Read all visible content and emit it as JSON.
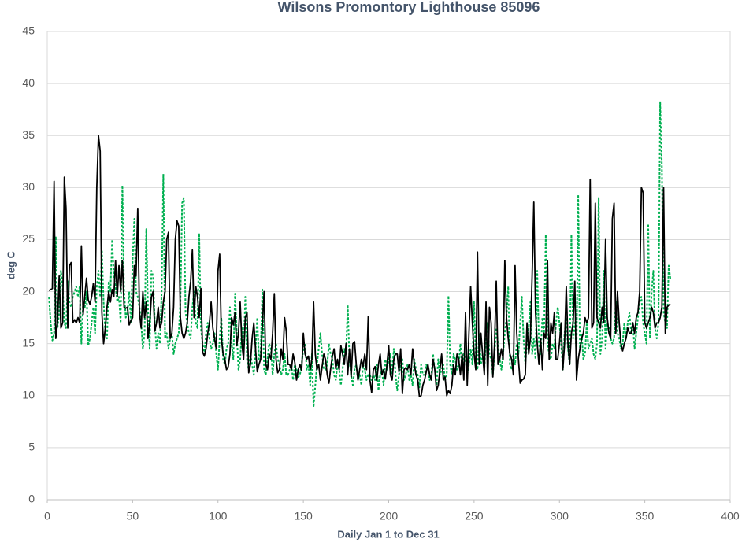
{
  "chart_data": {
    "type": "line",
    "title": "Wilsons Promontory Lighthouse 85096",
    "x_label": "Daily Jan 1 to Dec 31",
    "y_label": "deg C",
    "xlim": [
      0,
      400
    ],
    "xticks": [
      0,
      50,
      100,
      150,
      200,
      250,
      300,
      350,
      400
    ],
    "ylim": [
      0,
      45
    ],
    "yticks": [
      0,
      5,
      10,
      15,
      20,
      25,
      30,
      35,
      40,
      45
    ],
    "grid": true,
    "x": [
      1,
      2,
      3,
      4,
      5,
      6,
      7,
      8,
      9,
      10,
      11,
      12,
      13,
      14,
      15,
      16,
      17,
      18,
      19,
      20,
      21,
      22,
      23,
      24,
      25,
      26,
      27,
      28,
      29,
      30,
      31,
      32,
      33,
      34,
      35,
      36,
      37,
      38,
      39,
      40,
      41,
      42,
      43,
      44,
      45,
      46,
      47,
      48,
      49,
      50,
      51,
      52,
      53,
      54,
      55,
      56,
      57,
      58,
      59,
      60,
      61,
      62,
      63,
      64,
      65,
      66,
      67,
      68,
      69,
      70,
      71,
      72,
      73,
      74,
      75,
      76,
      77,
      78,
      79,
      80,
      81,
      82,
      83,
      84,
      85,
      86,
      87,
      88,
      89,
      90,
      91,
      92,
      93,
      94,
      95,
      96,
      97,
      98,
      99,
      100,
      101,
      102,
      103,
      104,
      105,
      106,
      107,
      108,
      109,
      110,
      111,
      112,
      113,
      114,
      115,
      116,
      117,
      118,
      119,
      120,
      121,
      122,
      123,
      124,
      125,
      126,
      127,
      128,
      129,
      130,
      131,
      132,
      133,
      134,
      135,
      136,
      137,
      138,
      139,
      140,
      141,
      142,
      143,
      144,
      145,
      146,
      147,
      148,
      149,
      150,
      151,
      152,
      153,
      154,
      155,
      156,
      157,
      158,
      159,
      160,
      161,
      162,
      163,
      164,
      165,
      166,
      167,
      168,
      169,
      170,
      171,
      172,
      173,
      174,
      175,
      176,
      177,
      178,
      179,
      180,
      181,
      182,
      183,
      184,
      185,
      186,
      187,
      188,
      189,
      190,
      191,
      192,
      193,
      194,
      195,
      196,
      197,
      198,
      199,
      200,
      201,
      202,
      203,
      204,
      205,
      206,
      207,
      208,
      209,
      210,
      211,
      212,
      213,
      214,
      215,
      216,
      217,
      218,
      219,
      220,
      221,
      222,
      223,
      224,
      225,
      226,
      227,
      228,
      229,
      230,
      231,
      232,
      233,
      234,
      235,
      236,
      237,
      238,
      239,
      240,
      241,
      242,
      243,
      244,
      245,
      246,
      247,
      248,
      249,
      250,
      251,
      252,
      253,
      254,
      255,
      256,
      257,
      258,
      259,
      260,
      261,
      262,
      263,
      264,
      265,
      266,
      267,
      268,
      269,
      270,
      271,
      272,
      273,
      274,
      275,
      276,
      277,
      278,
      279,
      280,
      281,
      282,
      283,
      284,
      285,
      286,
      287,
      288,
      289,
      290,
      291,
      292,
      293,
      294,
      295,
      296,
      297,
      298,
      299,
      300,
      301,
      302,
      303,
      304,
      305,
      306,
      307,
      308,
      309,
      310,
      311,
      312,
      313,
      314,
      315,
      316,
      317,
      318,
      319,
      320,
      321,
      322,
      323,
      324,
      325,
      326,
      327,
      328,
      329,
      330,
      331,
      332,
      333,
      334,
      335,
      336,
      337,
      338,
      339,
      340,
      341,
      342,
      343,
      344,
      345,
      346,
      347,
      348,
      349,
      350,
      351,
      352,
      353,
      354,
      355,
      356,
      357,
      358,
      359,
      360,
      361,
      362,
      363,
      364,
      365
    ],
    "series": [
      {
        "color": "#000000",
        "line_style": "solid",
        "values": [
          20.1,
          20.2,
          20.3,
          30.6,
          15.5,
          17,
          21.5,
          16.5,
          17,
          31,
          28,
          16.5,
          22.5,
          22.8,
          17,
          17.3,
          17,
          17.5,
          17,
          24.4,
          17.8,
          19.6,
          21.3,
          19.2,
          18.8,
          19.5,
          20.8,
          19,
          30,
          35,
          33.5,
          18,
          15,
          16.5,
          18.5,
          20,
          19,
          20.2,
          19.5,
          23,
          19.5,
          22.5,
          20,
          23,
          18.5,
          18.4,
          18.5,
          16.8,
          17.2,
          17.5,
          22.5,
          21.5,
          28,
          18,
          16.5,
          20,
          17.5,
          19,
          15.5,
          17,
          19.5,
          20,
          16.2,
          17,
          18.5,
          16.5,
          17,
          19,
          20,
          25,
          25.7,
          15.5,
          16,
          18.5,
          25,
          26.8,
          26.3,
          17.5,
          16,
          15.5,
          16,
          17,
          19.5,
          21,
          24,
          17.5,
          20.5,
          19.5,
          17.5,
          20.3,
          14.2,
          13.8,
          14.5,
          16,
          17,
          19,
          16.5,
          15.5,
          14.5,
          22,
          23.6,
          15.5,
          14,
          13.5,
          12.5,
          12.8,
          14,
          17.5,
          16.8,
          18,
          14.8,
          16,
          19,
          15,
          13.5,
          17.5,
          18,
          12.2,
          13,
          15.5,
          17,
          14.5,
          12.3,
          13,
          13.5,
          16.8,
          20,
          13,
          12.5,
          14,
          13.5,
          16,
          19.8,
          13.5,
          12.2,
          12.5,
          14.5,
          13.5,
          17.5,
          16.2,
          13,
          13,
          12.5,
          14,
          13.2,
          11.5,
          12.5,
          13,
          12.4,
          16,
          14,
          13.5,
          13.8,
          12.5,
          13.5,
          19,
          14,
          12.5,
          13,
          11.5,
          12.8,
          14,
          13.5,
          12,
          11.2,
          12.6,
          13.8,
          14.5,
          12.6,
          13.5,
          12.5,
          14.8,
          14,
          13,
          15,
          12,
          14.5,
          11.8,
          15,
          15.2,
          13,
          11.5,
          12.5,
          13.5,
          12.8,
          14,
          12.5,
          17.6,
          11.5,
          10.3,
          12.5,
          12.8,
          11.5,
          13,
          14,
          12,
          12.5,
          11.6,
          13,
          14.8,
          12,
          11.5,
          13.5,
          14,
          14,
          12.3,
          14.5,
          10.2,
          12.5,
          12.7,
          12.5,
          13,
          12,
          14.5,
          13,
          12,
          11.5,
          9.9,
          10,
          11,
          11.5,
          12.3,
          13,
          12,
          11.5,
          13.5,
          12.5,
          10.5,
          11,
          12.5,
          14,
          11.5,
          11.8,
          10,
          10.5,
          10.2,
          11,
          13,
          12,
          14,
          13.5,
          12,
          14,
          11.5,
          18,
          11,
          16,
          20.5,
          17,
          14,
          12.5,
          23.8,
          13,
          16,
          14,
          12,
          19,
          11,
          18.5,
          17,
          11.8,
          15,
          21,
          13,
          13.5,
          14.5,
          13.5,
          23,
          17.5,
          15.5,
          14,
          13.5,
          12,
          22.5,
          16,
          13.5,
          11.2,
          11.5,
          11.6,
          12,
          17,
          14,
          15.5,
          21.5,
          28.6,
          18,
          15,
          13,
          15.5,
          12.5,
          16,
          15.5,
          23,
          13.5,
          17,
          16,
          18,
          13.5,
          13.5,
          15,
          17,
          12.5,
          15,
          20.5,
          15,
          13,
          16,
          17,
          21,
          11.5,
          13.5,
          14.5,
          15.5,
          16,
          17.5,
          17,
          17.5,
          30.8,
          16.5,
          17,
          28.5,
          17.5,
          17,
          16.5,
          18.5,
          17,
          25,
          17.5,
          16,
          15.5,
          27,
          28.5,
          16,
          20,
          17,
          15,
          14.3,
          15,
          15.5,
          16.5,
          16,
          16,
          17,
          16,
          17.5,
          18,
          20,
          30,
          29.5,
          17,
          16.5,
          17,
          17.5,
          18.5,
          18,
          16.5,
          17,
          17,
          17.5,
          18.5,
          30,
          16,
          18.5,
          18.7,
          18.8
        ]
      },
      {
        "color": "#00b050",
        "line_style": "dashed",
        "values": [
          19.5,
          17,
          15.3,
          16,
          25.3,
          16.5,
          18,
          22,
          20.5,
          17,
          16.5,
          21,
          19,
          18.5,
          19.5,
          20,
          20.5,
          19.5,
          20.5,
          15,
          19,
          18.5,
          20,
          14.8,
          15.5,
          17,
          18.5,
          16,
          20.5,
          22,
          19.5,
          24,
          19,
          16,
          15.5,
          21,
          20,
          25,
          21.5,
          20.5,
          19,
          19.5,
          17,
          30.2,
          20,
          17.5,
          18,
          20,
          17,
          23,
          27,
          20,
          19.5,
          18.5,
          17,
          14.5,
          16,
          26,
          18.5,
          14.5,
          22,
          21.5,
          17,
          14.5,
          16,
          15,
          20,
          31.3,
          15.5,
          16,
          14.5,
          15.5,
          16,
          14,
          15,
          15.5,
          16,
          19,
          28.5,
          29,
          18,
          17,
          16,
          15.5,
          18.5,
          20,
          17,
          16.5,
          25.6,
          16.5,
          15,
          14,
          16,
          17,
          15.5,
          14.5,
          15,
          16,
          14,
          12.5,
          15.5,
          17.5,
          13.5,
          13,
          14.5,
          15,
          18.5,
          15,
          13.5,
          19.8,
          16,
          12.5,
          13.5,
          16.5,
          14,
          19.5,
          13.5,
          12.5,
          14,
          13,
          12,
          14.5,
          17.5,
          13.5,
          14,
          20.2,
          12.5,
          12,
          13.5,
          15,
          14.5,
          12,
          14,
          15,
          13.5,
          13,
          12,
          12.5,
          14,
          12,
          12,
          12.5,
          13,
          11.5,
          13,
          12.5,
          11.8,
          12,
          13,
          14.5,
          15,
          12.5,
          13,
          11,
          14,
          8.9,
          11,
          13,
          14.5,
          16,
          14,
          12.5,
          12.5,
          13,
          15,
          14,
          13.5,
          12,
          11.5,
          13,
          12.5,
          11,
          12.5,
          14.5,
          14,
          18.7,
          13.5,
          12,
          11,
          12.5,
          13,
          11.5,
          12,
          11,
          13,
          12.5,
          11.5,
          12,
          12,
          11.5,
          12,
          11.5,
          13,
          10.5,
          12,
          12.5,
          11,
          13.5,
          12.5,
          13.5,
          14,
          12,
          14.5,
          12,
          10.5,
          12,
          13,
          13.5,
          11.5,
          12,
          13,
          11.5,
          12,
          11,
          13.5,
          12.5,
          12,
          10.8,
          13,
          12,
          12,
          13,
          12.5,
          11.5,
          12,
          14,
          12.5,
          11,
          13.5,
          12,
          12.5,
          13,
          11.5,
          12,
          19.6,
          13,
          12,
          14,
          13.5,
          12.5,
          13,
          15,
          12.5,
          14,
          13.5,
          12,
          13,
          14.5,
          13,
          19,
          13.5,
          12.5,
          16,
          13,
          14,
          12.5,
          15.5,
          17,
          14,
          13.5,
          12,
          14,
          16.5,
          15,
          13.5,
          12.5,
          14,
          16,
          17.5,
          20.5,
          13,
          12.5,
          14,
          13,
          15,
          14,
          17,
          19.5,
          15.5,
          13,
          15,
          16.5,
          19,
          14,
          15.5,
          13.5,
          22,
          15,
          14,
          17.5,
          16,
          25.5,
          15,
          14,
          13.5,
          15,
          14.5,
          17,
          18.5,
          17,
          15,
          12.5,
          16,
          17.5,
          14.5,
          13,
          25.5,
          15.5,
          17,
          14,
          29.3,
          14.5,
          16,
          13.5,
          14,
          17,
          14.5,
          15,
          15.5,
          14,
          13.5,
          15,
          29,
          14,
          15.5,
          22,
          14.5,
          17,
          16.5,
          15.5,
          15,
          15.5,
          19,
          16,
          15.5,
          14.5,
          15,
          17,
          15.5,
          17,
          18,
          16,
          17,
          14.5,
          16,
          17.5,
          19,
          19.5,
          17,
          16,
          15,
          26.5,
          15.5,
          20,
          22,
          16.5,
          15.5,
          17,
          38.3,
          32,
          18,
          17,
          16.5,
          22.5,
          21.2
        ]
      }
    ]
  }
}
